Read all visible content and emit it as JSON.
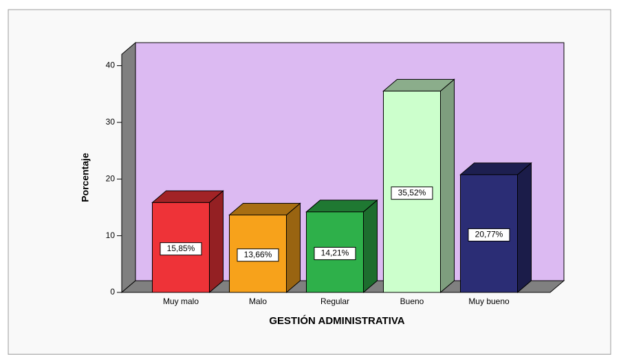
{
  "chart_data": {
    "type": "bar3d",
    "x_label": "GESTIÓN ADMINISTRATIVA",
    "y_label": "Porcentaje",
    "categories": [
      "Muy malo",
      "Malo",
      "Regular",
      "Bueno",
      "Muy bueno"
    ],
    "values": [
      15.85,
      13.66,
      14.21,
      35.52,
      20.77
    ],
    "value_labels": [
      "15,85%",
      "13,66%",
      "14,21%",
      "35,52%",
      "20,77%"
    ],
    "colors": [
      "#ee3338",
      "#f7a21b",
      "#2eb04a",
      "#ccffcc",
      "#2b2d75"
    ],
    "ylim": [
      0,
      42
    ],
    "yticks": [
      0,
      10,
      20,
      30,
      40
    ],
    "wall_color": "#dcbaf2",
    "floor_color": "#808080"
  }
}
